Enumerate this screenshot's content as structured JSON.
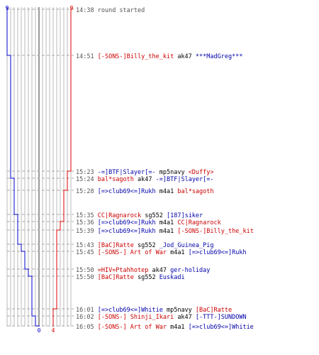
{
  "colors": {
    "blue_team": "#0000cc",
    "red_team": "#dd0000",
    "grid": "#b8b8b8",
    "center_line": "#555555",
    "dashed": "#aaaaaa",
    "time": "#555555"
  },
  "chart_data": {
    "type": "line",
    "x_axis": "time",
    "start_label_blue": "9",
    "start_label_red": "9",
    "end_label_blue": "0",
    "end_label_red": "4",
    "series": [
      {
        "team": "blue",
        "values": [
          9,
          8,
          7,
          6,
          5,
          4,
          3,
          2,
          1,
          0
        ],
        "color": "#0000cc"
      },
      {
        "team": "red",
        "values": [
          9,
          8,
          7,
          6,
          5,
          4
        ],
        "color": "#dd0000"
      }
    ]
  },
  "events": [
    {
      "time": "14:38",
      "killer": "",
      "killer_team": "",
      "weapon": "round started",
      "victim": "",
      "victim_team": "",
      "blue_delta": 0,
      "red_delta": 0
    },
    {
      "time": "14:51",
      "killer": "[-SONS-]Billy_the_kit",
      "killer_team": "red",
      "weapon": "ak47",
      "victim": "***MadGreg***",
      "victim_team": "blue",
      "blue_delta": 1,
      "red_delta": 0
    },
    {
      "time": "15:23",
      "killer": "-=]BTF|Slayer[=-",
      "killer_team": "blue",
      "weapon": "mp5navy",
      "victim": "<Duffy>",
      "victim_team": "red",
      "blue_delta": 0,
      "red_delta": 1
    },
    {
      "time": "15:24",
      "killer": "bal*sagoth",
      "killer_team": "red",
      "weapon": "ak47",
      "victim": "-=]BTF|Slayer[=-",
      "victim_team": "blue",
      "blue_delta": 1,
      "red_delta": 0
    },
    {
      "time": "15:28",
      "killer": "[=>club69<=]Rukh",
      "killer_team": "blue",
      "weapon": "m4a1",
      "victim": "bal*sagoth",
      "victim_team": "red",
      "blue_delta": 0,
      "red_delta": 1
    },
    {
      "time": "15:35",
      "killer": "CC|Ragnarock",
      "killer_team": "red",
      "weapon": "sg552",
      "victim": "[187]siker",
      "victim_team": "blue",
      "blue_delta": 1,
      "red_delta": 0
    },
    {
      "time": "15:36",
      "killer": "[=>club69<=]Rukh",
      "killer_team": "blue",
      "weapon": "m4a1",
      "victim": "CC|Ragnarock",
      "victim_team": "red",
      "blue_delta": 0,
      "red_delta": 1
    },
    {
      "time": "15:39",
      "killer": "[=>club69<=]Rukh",
      "killer_team": "blue",
      "weapon": "m4a1",
      "victim": "[-SONS-]Billy_the_kit",
      "victim_team": "red",
      "blue_delta": 0,
      "red_delta": 1
    },
    {
      "time": "15:43",
      "killer": "[BaC]Ratte",
      "killer_team": "red",
      "weapon": "sg552",
      "victim": "_Jod_Guinea_Pig",
      "victim_team": "blue",
      "blue_delta": 1,
      "red_delta": 0
    },
    {
      "time": "15:45",
      "killer": "[-SONS-] Art of War",
      "killer_team": "red",
      "weapon": "m4a1",
      "victim": "[=>club69<=]Rukh",
      "victim_team": "blue",
      "blue_delta": 1,
      "red_delta": 0
    },
    {
      "time": "15:50",
      "killer": "=HIV=Ptahhotep",
      "killer_team": "red",
      "weapon": "ak47",
      "victim": "ger-holiday",
      "victim_team": "blue",
      "blue_delta": 1,
      "red_delta": 0
    },
    {
      "time": "15:50",
      "killer": "[BaC]Ratte",
      "killer_team": "red",
      "weapon": "sg552",
      "victim": "Euskadi",
      "victim_team": "blue",
      "blue_delta": 1,
      "red_delta": 0
    },
    {
      "time": "16:01",
      "killer": "[=>club69<=]Whitie",
      "killer_team": "blue",
      "weapon": "mp5navy",
      "victim": "[BaC]Ratte",
      "victim_team": "red",
      "blue_delta": 0,
      "red_delta": 1
    },
    {
      "time": "16:02",
      "killer": "[-SONS-] Shinji_Ikari",
      "killer_team": "red",
      "weapon": "ak47",
      "victim": "[-TTT-]SUNDOWN",
      "victim_team": "blue",
      "blue_delta": 1,
      "red_delta": 0
    },
    {
      "time": "16:05",
      "killer": "[-SONS-] Art of War",
      "killer_team": "red",
      "weapon": "m4a1",
      "victim": "[=>club69<=]Whitie",
      "victim_team": "blue",
      "blue_delta": 1,
      "red_delta": 0
    }
  ]
}
